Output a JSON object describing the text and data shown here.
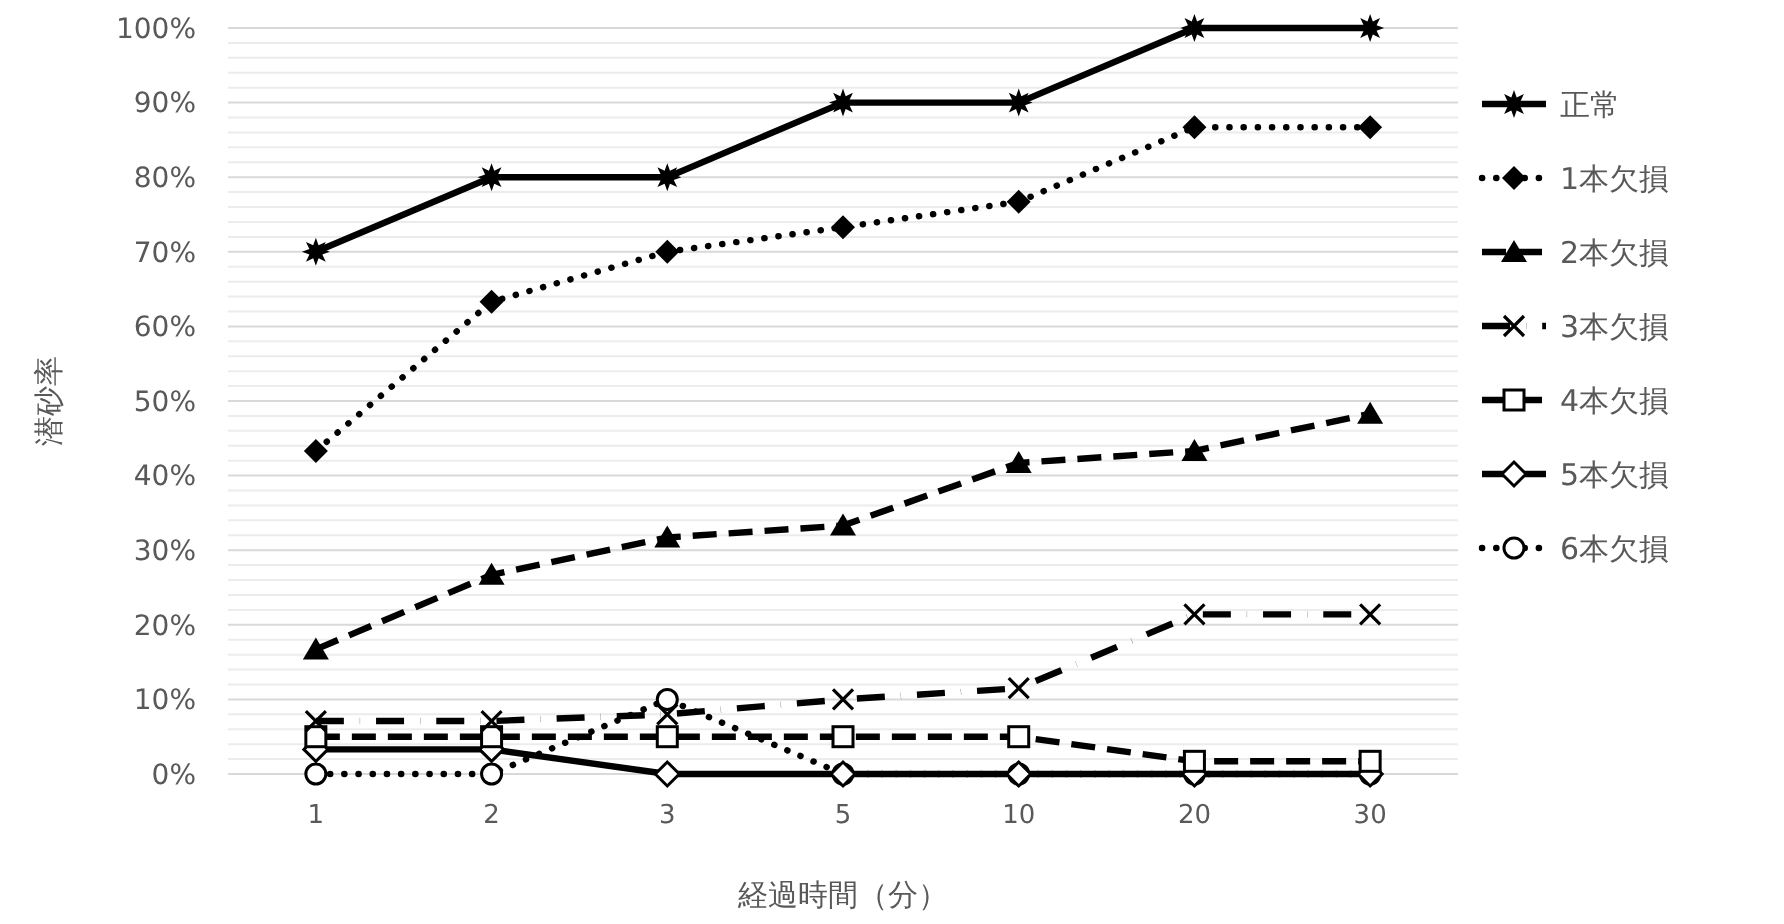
{
  "chart_data": {
    "type": "line",
    "xlabel": "経過時間（分）",
    "ylabel": "潜砂率",
    "categories": [
      "1",
      "2",
      "3",
      "5",
      "10",
      "20",
      "30"
    ],
    "ylim": [
      0,
      100
    ],
    "yticks": [
      {
        "value": 0,
        "label": "0%"
      },
      {
        "value": 2,
        "label": null
      },
      {
        "value": 4,
        "label": null
      },
      {
        "value": 6,
        "label": null
      },
      {
        "value": 8,
        "label": null
      },
      {
        "value": 10,
        "label": "10%"
      },
      {
        "value": 12,
        "label": null
      },
      {
        "value": 14,
        "label": null
      },
      {
        "value": 16,
        "label": null
      },
      {
        "value": 18,
        "label": null
      },
      {
        "value": 20,
        "label": "20%"
      },
      {
        "value": 22,
        "label": null
      },
      {
        "value": 24,
        "label": null
      },
      {
        "value": 26,
        "label": null
      },
      {
        "value": 28,
        "label": null
      },
      {
        "value": 30,
        "label": "30%"
      },
      {
        "value": 32,
        "label": null
      },
      {
        "value": 34,
        "label": null
      },
      {
        "value": 36,
        "label": null
      },
      {
        "value": 38,
        "label": null
      },
      {
        "value": 40,
        "label": "40%"
      },
      {
        "value": 42,
        "label": null
      },
      {
        "value": 44,
        "label": null
      },
      {
        "value": 46,
        "label": null
      },
      {
        "value": 48,
        "label": null
      },
      {
        "value": 50,
        "label": "50%"
      },
      {
        "value": 52,
        "label": null
      },
      {
        "value": 54,
        "label": null
      },
      {
        "value": 56,
        "label": null
      },
      {
        "value": 58,
        "label": null
      },
      {
        "value": 60,
        "label": "60%"
      },
      {
        "value": 62,
        "label": null
      },
      {
        "value": 64,
        "label": null
      },
      {
        "value": 66,
        "label": null
      },
      {
        "value": 68,
        "label": null
      },
      {
        "value": 70,
        "label": "70%"
      },
      {
        "value": 72,
        "label": null
      },
      {
        "value": 74,
        "label": null
      },
      {
        "value": 76,
        "label": null
      },
      {
        "value": 78,
        "label": null
      },
      {
        "value": 80,
        "label": "80%"
      },
      {
        "value": 82,
        "label": null
      },
      {
        "value": 84,
        "label": null
      },
      {
        "value": 86,
        "label": null
      },
      {
        "value": 88,
        "label": null
      },
      {
        "value": 90,
        "label": "90%"
      },
      {
        "value": 92,
        "label": null
      },
      {
        "value": 94,
        "label": null
      },
      {
        "value": 96,
        "label": null
      },
      {
        "value": 98,
        "label": null
      },
      {
        "value": 100,
        "label": "100%"
      }
    ],
    "grid": "y",
    "legend": "right",
    "series": [
      {
        "name": "正常",
        "color": "#000000",
        "marker": "star",
        "line_style": "solid",
        "values": [
          70,
          80,
          80,
          90,
          90,
          100,
          100
        ]
      },
      {
        "name": "1本欠損",
        "color": "#000000",
        "marker": "diamond",
        "line_style": "dotted",
        "values": [
          43.3,
          63.3,
          70,
          73.3,
          76.7,
          86.7,
          86.7
        ]
      },
      {
        "name": "2本欠損",
        "color": "#000000",
        "marker": "triangle",
        "line_style": "dashed",
        "values": [
          16.7,
          26.7,
          31.7,
          33.3,
          41.7,
          43.3,
          48.3
        ]
      },
      {
        "name": "3本欠損",
        "color": "#000000",
        "marker": "cross",
        "line_style": "dashdot",
        "values": [
          7.1,
          7.1,
          8,
          10,
          11.5,
          21.4,
          21.4
        ]
      },
      {
        "name": "4本欠損",
        "color": "#000000",
        "marker": "square",
        "line_style": "dashed",
        "values": [
          5,
          5,
          5,
          5,
          5,
          1.7,
          1.7
        ]
      },
      {
        "name": "5本欠損",
        "color": "#000000",
        "marker": "diamond-open",
        "line_style": "solid",
        "values": [
          3.3,
          3.3,
          0,
          0,
          0,
          0,
          0
        ]
      },
      {
        "name": "6本欠損",
        "color": "#000000",
        "marker": "circle",
        "line_style": "dotted",
        "values": [
          0,
          0,
          10,
          0,
          0,
          0,
          0
        ]
      }
    ]
  }
}
